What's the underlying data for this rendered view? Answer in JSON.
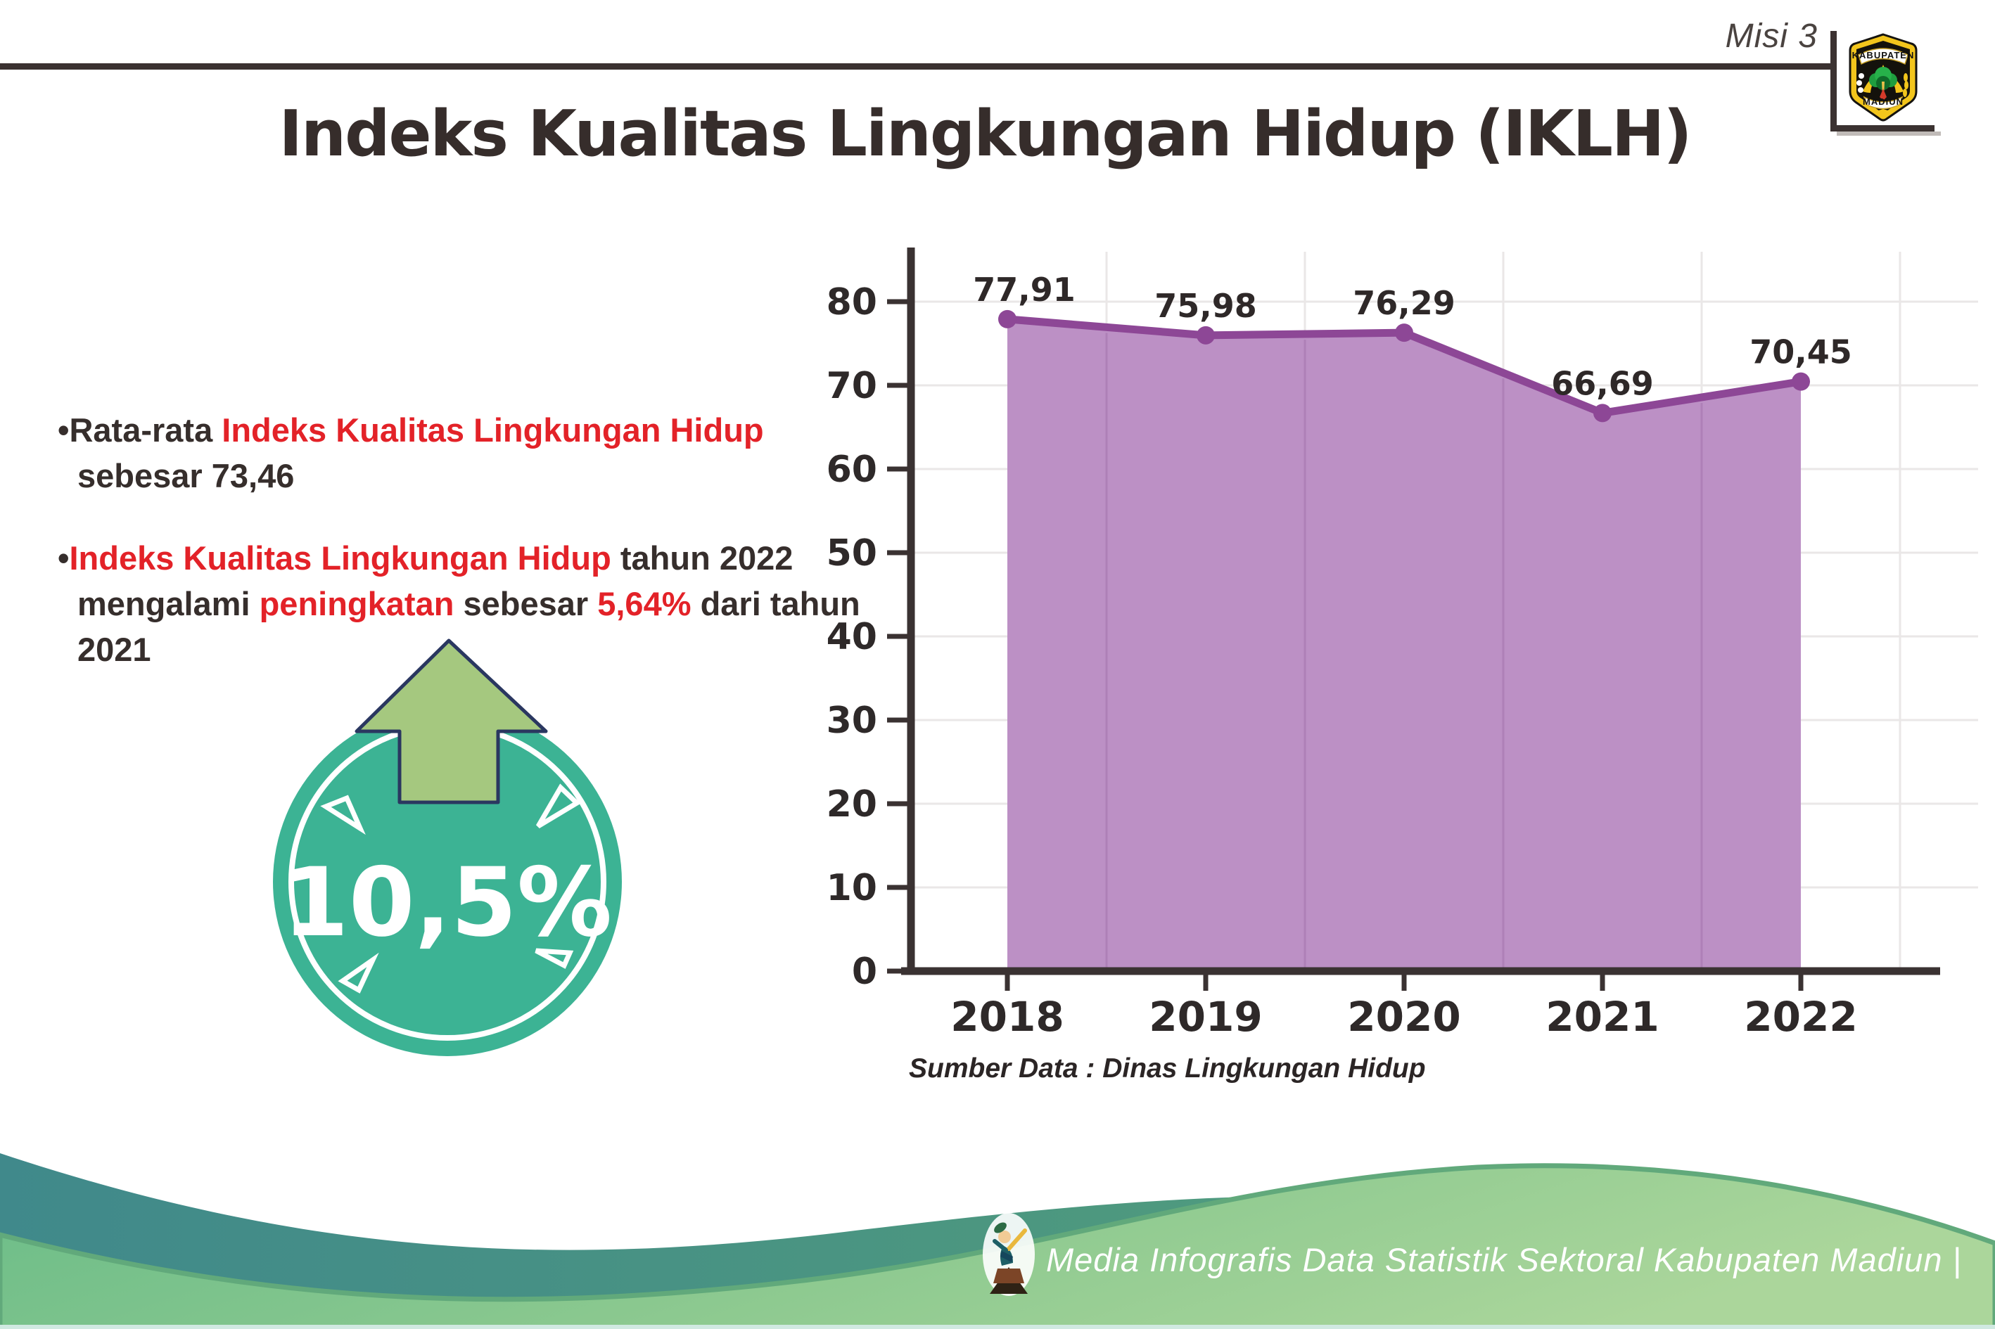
{
  "header": {
    "misi_label": "Misi 3",
    "logo": {
      "top_text": "KABUPATEN",
      "bottom_text": "MADIUN"
    }
  },
  "title": "Indeks Kualitas Lingkungan Hidup (IKLH)",
  "bullets": [
    {
      "marker": "•",
      "segments": [
        {
          "text": "Rata-rata ",
          "color": "dark"
        },
        {
          "text": "Indeks Kualitas Lingkungan Hidup",
          "color": "red"
        },
        {
          "text": " sebesar 73,46",
          "color": "dark"
        }
      ]
    },
    {
      "marker": "•",
      "segments": [
        {
          "text": "Indeks Kualitas Lingkungan Hidup",
          "color": "red"
        },
        {
          "text": " tahun 2022 mengalami ",
          "color": "dark"
        },
        {
          "text": "peningkatan",
          "color": "red"
        },
        {
          "text": " sebesar ",
          "color": "dark"
        },
        {
          "text": "5,64%",
          "color": "red"
        },
        {
          "text": " dari tahun 2021",
          "color": "dark"
        }
      ]
    }
  ],
  "badge": {
    "value": "10,5%",
    "direction": "up",
    "circle_color": "#3cb394",
    "arrow_color": "#a5c87f"
  },
  "chart_data": {
    "type": "area",
    "title": "",
    "xlabel": "",
    "ylabel": "",
    "categories": [
      "2018",
      "2019",
      "2020",
      "2021",
      "2022"
    ],
    "series": [
      {
        "name": "IKLH",
        "values": [
          77.91,
          75.98,
          76.29,
          66.69,
          70.45
        ]
      }
    ],
    "value_labels": [
      "77,91",
      "75,98",
      "76,29",
      "66,69",
      "70,45"
    ],
    "yticks": [
      "80",
      "70",
      "60",
      "50",
      "40",
      "30",
      "20",
      "10",
      "0"
    ],
    "ylim": [
      0,
      85
    ],
    "grid": true,
    "legend": false,
    "line_color": "#8d4796",
    "area_color": "#bc90c5",
    "source_note": "Sumber Data : Dinas Lingkungan Hidup"
  },
  "footer": {
    "text": "Media Infografis Data Statistik Sektoral Kabupaten Madiun |"
  },
  "colors": {
    "text_dark": "#362e2c",
    "text_red": "#e32228",
    "rule_dark": "#3b3231",
    "badge_teal": "#3cb394",
    "badge_arrow_green": "#a5c87f",
    "chart_line_purple": "#8d4796",
    "chart_fill_purple": "#bc90c5",
    "footer_teal": "#40898b",
    "footer_green": "#84c38c"
  }
}
